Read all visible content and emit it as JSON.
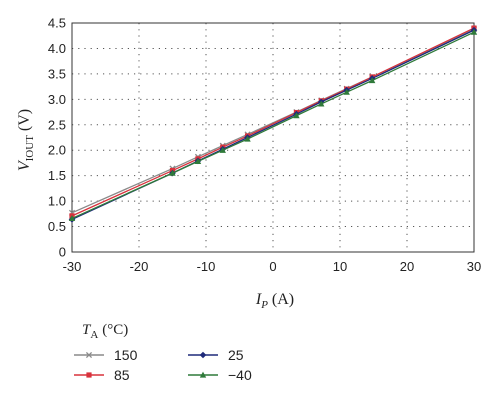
{
  "chart_data": {
    "type": "line",
    "title": "",
    "xlabel": {
      "main": "I",
      "sub": "P",
      "unit": "(A)"
    },
    "ylabel": {
      "main": "V",
      "sub": "IOUT",
      "unit": "(V)"
    },
    "xlim": [
      -30,
      30
    ],
    "ylim": [
      0,
      4.5
    ],
    "xticks": [
      "-30",
      "-20",
      "-10",
      "0",
      "10",
      "20",
      "30"
    ],
    "yticks": [
      "0",
      "0.5",
      "1.0",
      "1.5",
      "2.0",
      "2.5",
      "3.0",
      "3.5",
      "4.0",
      "4.5"
    ],
    "xtick_values": [
      -30,
      -20,
      -10,
      0,
      10,
      20,
      30
    ],
    "ytick_values": [
      0,
      0.5,
      1.0,
      1.5,
      2.0,
      2.5,
      3.0,
      3.5,
      4.0,
      4.5
    ],
    "grid": true,
    "legend": {
      "title_main": "T",
      "title_sub": "A",
      "title_unit": "(°C)",
      "placement": "bottom-left"
    },
    "x": [
      -30,
      -15,
      -11.2,
      -7.5,
      -3.8,
      3.5,
      7.2,
      11,
      14.8,
      30
    ],
    "series": [
      {
        "name": "150",
        "color": "#8a8a8a",
        "marker": "x",
        "values": [
          0.77,
          1.64,
          1.87,
          2.09,
          2.31,
          2.75,
          2.98,
          3.21,
          3.44,
          4.38
        ]
      },
      {
        "name": "85",
        "color": "#d8323c",
        "marker": "square",
        "values": [
          0.71,
          1.6,
          1.83,
          2.06,
          2.28,
          2.74,
          2.97,
          3.2,
          3.44,
          4.4
        ]
      },
      {
        "name": "25",
        "color": "#1f2a7a",
        "marker": "diamond",
        "values": [
          0.64,
          1.55,
          1.79,
          2.02,
          2.25,
          2.71,
          2.95,
          3.18,
          3.41,
          4.36
        ]
      },
      {
        "name": "−40",
        "color": "#2f7a3a",
        "marker": "triangle",
        "values": [
          0.66,
          1.55,
          1.78,
          2.0,
          2.22,
          2.68,
          2.91,
          3.14,
          3.37,
          4.32
        ]
      }
    ]
  }
}
